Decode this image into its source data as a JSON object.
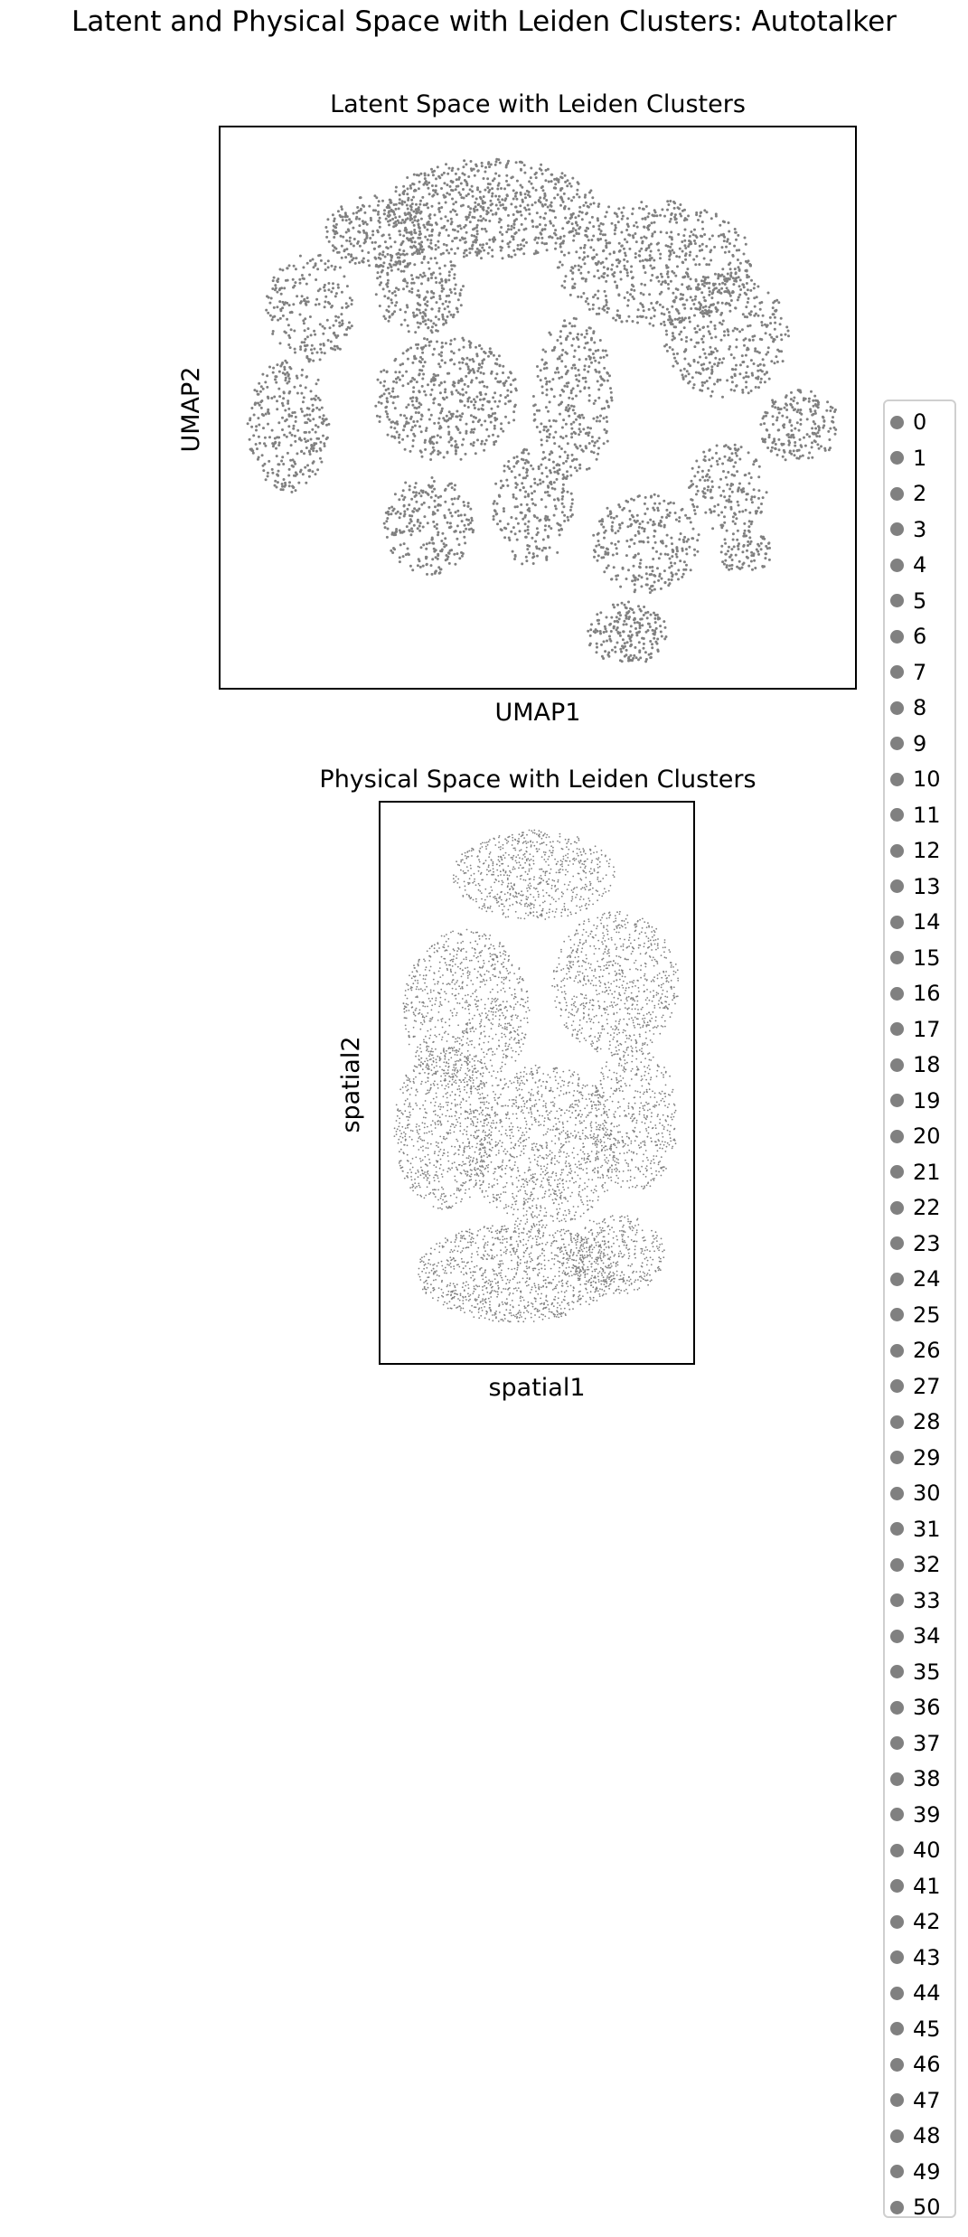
{
  "figure": {
    "suptitle": "Latent and Physical Space with Leiden Clusters: Autotalker"
  },
  "colors": {
    "points": "#808080",
    "axes": "#000000",
    "legend_border": "#cfcfcf"
  },
  "chart_data": [
    {
      "type": "scatter",
      "title": "Latent Space with Leiden Clusters",
      "xlabel": "UMAP1",
      "ylabel": "UMAP2",
      "ticks": "none",
      "grid": false,
      "legend": "right",
      "series": [
        {
          "values": []
        }
      ]
    },
    {
      "type": "scatter",
      "title": "Physical Space with Leiden Clusters",
      "xlabel": "spatial1",
      "ylabel": "spatial2",
      "ticks": "none",
      "grid": false,
      "legend": "right",
      "series": [
        {
          "values": []
        }
      ]
    }
  ],
  "legend": {
    "marker_color": "#808080",
    "entries": [
      "0",
      "1",
      "2",
      "3",
      "4",
      "5",
      "6",
      "7",
      "8",
      "9",
      "10",
      "11",
      "12",
      "13",
      "14",
      "15",
      "16",
      "17",
      "18",
      "19",
      "20",
      "21",
      "22",
      "23",
      "24",
      "25",
      "26",
      "27",
      "28",
      "29",
      "30",
      "31",
      "32",
      "33",
      "34",
      "35",
      "36",
      "37",
      "38",
      "39",
      "40",
      "41",
      "42",
      "43",
      "44",
      "45",
      "46",
      "47",
      "48",
      "49",
      "50"
    ]
  }
}
